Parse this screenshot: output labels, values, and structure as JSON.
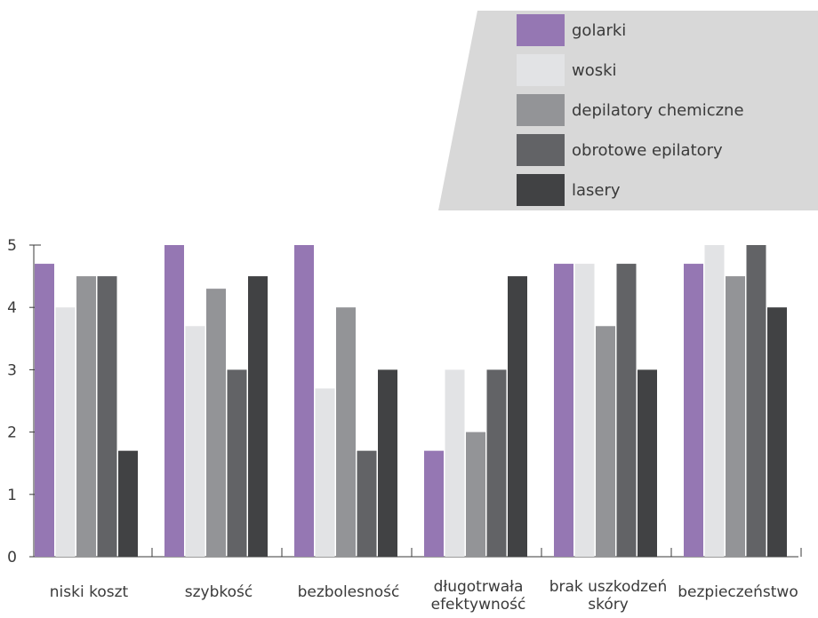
{
  "chart_data": {
    "type": "bar",
    "categories": [
      [
        "niski koszt"
      ],
      [
        "szybkość"
      ],
      [
        "bezbolesność"
      ],
      [
        "długotrwała",
        "efektywność"
      ],
      [
        "brak uszkodzeń",
        "skóry"
      ],
      [
        "bezpieczeństwo"
      ]
    ],
    "series": [
      {
        "name": "golarki",
        "color": "#9577b3",
        "values": [
          4.7,
          5.0,
          5.0,
          1.7,
          4.7,
          4.7
        ]
      },
      {
        "name": "woski",
        "color": "#e2e3e5",
        "values": [
          4.0,
          3.7,
          2.7,
          3.0,
          4.7,
          5.0
        ]
      },
      {
        "name": "depilatory chemiczne",
        "color": "#939497",
        "values": [
          4.5,
          4.3,
          4.0,
          2.0,
          3.7,
          4.5
        ]
      },
      {
        "name": "obrotowe epilatory",
        "color": "#626366",
        "values": [
          4.5,
          3.0,
          1.7,
          3.0,
          4.7,
          5.0
        ]
      },
      {
        "name": "lasery",
        "color": "#414244",
        "values": [
          1.7,
          4.5,
          3.0,
          4.5,
          3.0,
          4.0
        ]
      }
    ],
    "ylim": [
      0,
      5
    ],
    "yticks": [
      0,
      1,
      2,
      3,
      4,
      5
    ],
    "legend": {
      "placement": "top-right",
      "background": "#d8d8d8"
    }
  }
}
